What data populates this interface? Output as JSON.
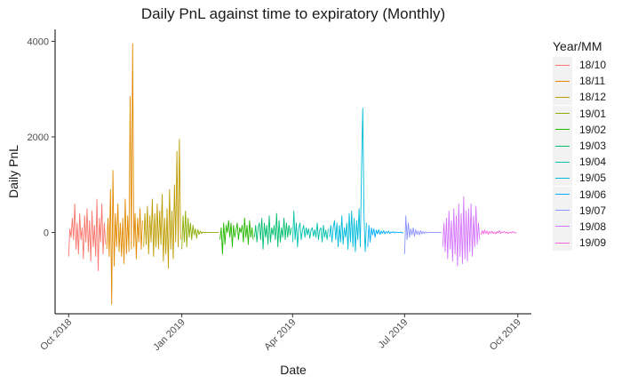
{
  "chart_data": {
    "type": "line",
    "title": "Daily PnL against time to expiratory (Monthly)",
    "xlabel": "Date",
    "ylabel": "Daily PnL",
    "x_range": [
      "2018-09-20",
      "2019-10-12"
    ],
    "ylim": [
      -1700,
      4250
    ],
    "x_ticks": [
      {
        "date": "2018-10-01",
        "label": "Oct 2018"
      },
      {
        "date": "2019-01-01",
        "label": "Jan 2019"
      },
      {
        "date": "2019-04-01",
        "label": "Apr 2019"
      },
      {
        "date": "2019-07-01",
        "label": "Jul 2019"
      },
      {
        "date": "2019-10-01",
        "label": "Oct 2019"
      }
    ],
    "y_ticks": [
      0,
      2000,
      4000
    ],
    "legend_title": "Year/MM",
    "legend_position": "right",
    "grid": false,
    "series": [
      {
        "name": "18/10",
        "color": "#F8766D",
        "start": "2018-10-01",
        "end": "2018-10-31",
        "values": [
          -500,
          80,
          -100,
          300,
          -150,
          600,
          -350,
          200,
          -450,
          400,
          -150,
          100,
          -550,
          350,
          -200,
          500,
          -400,
          250,
          -600,
          450,
          -300,
          150,
          -500,
          700,
          -800,
          300,
          -200,
          600,
          -450,
          200,
          -250
        ]
      },
      {
        "name": "18/11",
        "color": "#E18A00",
        "start": "2018-11-01",
        "end": "2018-11-30",
        "values": [
          -350,
          300,
          -500,
          900,
          -1500,
          1300,
          -700,
          400,
          -300,
          600,
          -400,
          200,
          -500,
          300,
          -650,
          700,
          -450,
          350,
          -400,
          2850,
          -350,
          3950,
          -300,
          400,
          -550,
          300,
          -200,
          500,
          -350,
          250
        ]
      },
      {
        "name": "18/12",
        "color": "#BE9C00",
        "start": "2018-12-01",
        "end": "2018-12-31",
        "values": [
          -300,
          400,
          -250,
          550,
          -450,
          350,
          -200,
          700,
          -500,
          400,
          -300,
          600,
          -350,
          450,
          -250,
          800,
          -600,
          300,
          -450,
          500,
          -750,
          900,
          -350,
          450,
          -550,
          1000,
          -200,
          1700,
          -300,
          1950,
          -150
        ]
      },
      {
        "name": "19/01",
        "color": "#8CAB00",
        "start": "2019-01-01",
        "end": "2019-01-31",
        "values": [
          -350,
          350,
          -200,
          450,
          -300,
          300,
          -100,
          200,
          -150,
          150,
          -50,
          80,
          -120,
          60,
          -40,
          30,
          -20,
          10,
          0,
          0,
          0,
          0,
          0,
          0,
          0,
          0,
          0,
          0,
          0,
          0,
          0
        ]
      },
      {
        "name": "19/02",
        "color": "#24B700",
        "start": "2019-02-01",
        "end": "2019-02-28",
        "values": [
          -150,
          100,
          -450,
          200,
          -250,
          150,
          0,
          250,
          -100,
          200,
          -300,
          150,
          -100,
          50,
          200,
          -150,
          100,
          0,
          150,
          -200,
          300,
          -100,
          150,
          -250,
          250,
          -100,
          100,
          -150
        ]
      },
      {
        "name": "19/03",
        "color": "#00BE70",
        "start": "2019-03-01",
        "end": "2019-03-31",
        "values": [
          -100,
          150,
          -200,
          100,
          200,
          -150,
          300,
          -350,
          200,
          -100,
          150,
          -250,
          350,
          -200,
          100,
          -50,
          150,
          -150,
          400,
          -300,
          250,
          -200,
          100,
          -100,
          300,
          -150,
          200,
          -100,
          150,
          -50,
          100
        ]
      },
      {
        "name": "19/04",
        "color": "#00C1AB",
        "start": "2019-04-01",
        "end": "2019-04-30",
        "values": [
          -200,
          450,
          -150,
          200,
          -300,
          100,
          200,
          -150,
          50,
          150,
          -100,
          100,
          -50,
          80,
          -120,
          50,
          100,
          -80,
          60,
          -100,
          200,
          -150,
          50,
          100,
          -200,
          150,
          -100,
          50,
          -150,
          80
        ]
      },
      {
        "name": "19/05",
        "color": "#00BBDA",
        "start": "2019-05-01",
        "end": "2019-05-31",
        "values": [
          -100,
          150,
          -200,
          100,
          250,
          -150,
          200,
          -300,
          150,
          -200,
          350,
          -250,
          100,
          -100,
          200,
          -350,
          400,
          -200,
          450,
          -300,
          300,
          -400,
          250,
          -150,
          500,
          -300,
          1300,
          2600,
          350,
          -400,
          200
        ]
      },
      {
        "name": "19/06",
        "color": "#00ACFC",
        "start": "2019-06-01",
        "end": "2019-06-30",
        "values": [
          -300,
          150,
          -200,
          100,
          -50,
          80,
          -100,
          50,
          -30,
          60,
          -40,
          30,
          -20,
          40,
          -30,
          20,
          -10,
          30,
          -20,
          10,
          0,
          20,
          -10,
          10,
          0,
          0,
          0,
          10,
          -10,
          0
        ]
      },
      {
        "name": "19/07",
        "color": "#8B93FF",
        "start": "2019-07-01",
        "end": "2019-07-31",
        "values": [
          -450,
          350,
          -150,
          200,
          -100,
          80,
          -50,
          100,
          -80,
          60,
          -40,
          30,
          -50,
          40,
          -30,
          20,
          -20,
          10,
          -10,
          0,
          0,
          0,
          0,
          0,
          0,
          0,
          0,
          0,
          0,
          0,
          0
        ]
      },
      {
        "name": "19/08",
        "color": "#D575FE",
        "start": "2019-08-01",
        "end": "2019-08-31",
        "values": [
          -300,
          200,
          -400,
          300,
          -550,
          450,
          -350,
          250,
          -600,
          500,
          -450,
          350,
          -700,
          600,
          -500,
          400,
          -650,
          750,
          -550,
          450,
          -600,
          500,
          -400,
          600,
          -500,
          350,
          -300,
          550,
          -250,
          200,
          -150
        ]
      },
      {
        "name": "19/09",
        "color": "#F962DD",
        "start": "2019-09-01",
        "end": "2019-09-30",
        "values": [
          -50,
          40,
          -30,
          50,
          -20,
          30,
          -40,
          20,
          -10,
          30,
          -20,
          10,
          -30,
          20,
          -10,
          40,
          -20,
          10,
          0,
          20,
          -10,
          10,
          -20,
          0,
          10,
          -10,
          20,
          0,
          -10,
          0
        ]
      }
    ]
  }
}
